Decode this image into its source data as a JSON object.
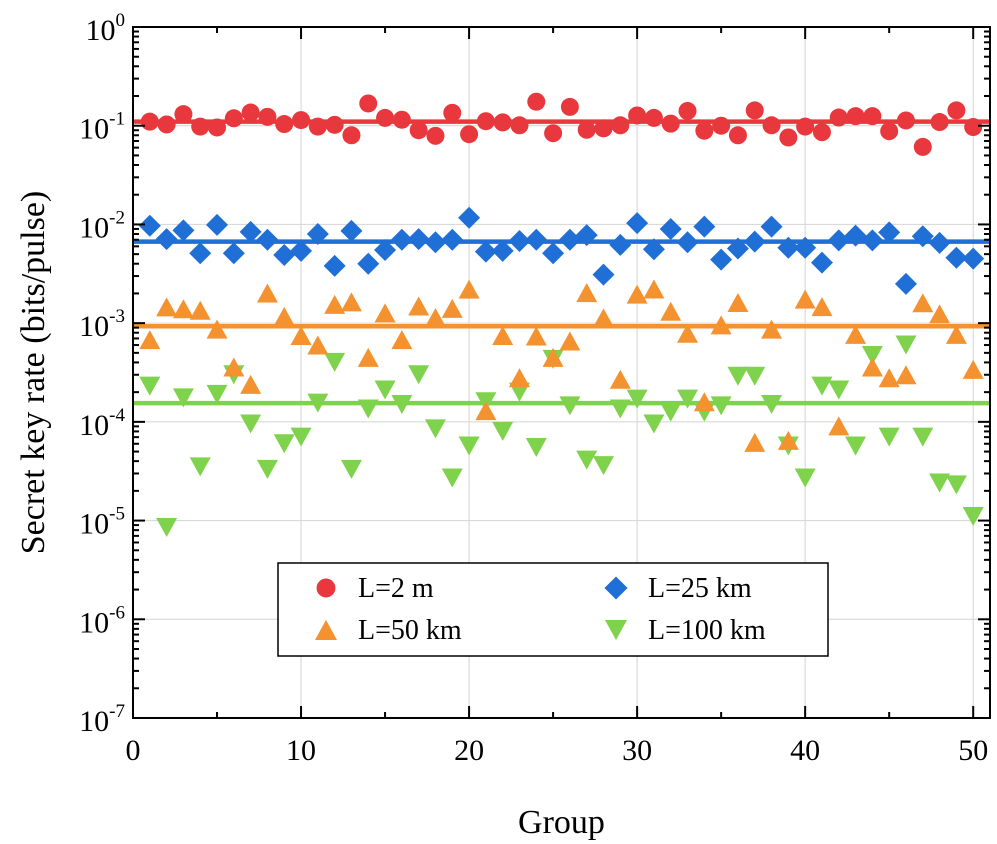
{
  "chart_data": {
    "type": "scatter",
    "title": "",
    "xlabel": "Group",
    "ylabel": "Secret key rate (bits/pulse)",
    "xlim": [
      0,
      51
    ],
    "ylim": [
      1e-07,
      1
    ],
    "yscale": "log",
    "grid": true,
    "legend_position": "bottom-center",
    "x_ticks": [
      "0",
      "10",
      "20",
      "30",
      "40",
      "50"
    ],
    "y_ticks": [
      {
        "base": "10",
        "exp": "0"
      },
      {
        "base": "10",
        "exp": "-1"
      },
      {
        "base": "10",
        "exp": "-2"
      },
      {
        "base": "10",
        "exp": "-3"
      },
      {
        "base": "10",
        "exp": "-4"
      },
      {
        "base": "10",
        "exp": "-5"
      },
      {
        "base": "10",
        "exp": "-6"
      },
      {
        "base": "10",
        "exp": "-7"
      }
    ],
    "x": [
      1,
      2,
      3,
      4,
      5,
      6,
      7,
      8,
      9,
      10,
      11,
      12,
      13,
      14,
      15,
      16,
      17,
      18,
      19,
      20,
      21,
      22,
      23,
      24,
      25,
      26,
      27,
      28,
      29,
      30,
      31,
      32,
      33,
      34,
      35,
      36,
      37,
      38,
      39,
      40,
      41,
      42,
      43,
      44,
      45,
      46,
      47,
      48,
      49,
      50
    ],
    "series": [
      {
        "name": "L=2 m",
        "marker": "circle",
        "color": "#e8383d",
        "mean": 0.11,
        "values": [
          0.11,
          0.103,
          0.131,
          0.098,
          0.096,
          0.119,
          0.136,
          0.123,
          0.104,
          0.114,
          0.098,
          0.102,
          0.08,
          0.168,
          0.12,
          0.115,
          0.09,
          0.079,
          0.135,
          0.082,
          0.111,
          0.108,
          0.101,
          0.175,
          0.084,
          0.155,
          0.091,
          0.094,
          0.101,
          0.127,
          0.12,
          0.105,
          0.141,
          0.089,
          0.1,
          0.08,
          0.143,
          0.101,
          0.076,
          0.098,
          0.086,
          0.121,
          0.125,
          0.125,
          0.088,
          0.113,
          0.061,
          0.109,
          0.143,
          0.097
        ]
      },
      {
        "name": "L=25 km",
        "marker": "diamond",
        "color": "#1f6fd6",
        "mean": 0.0067,
        "values": [
          0.0097,
          0.0071,
          0.0087,
          0.0051,
          0.0099,
          0.0051,
          0.0084,
          0.007,
          0.0049,
          0.0054,
          0.008,
          0.0038,
          0.0086,
          0.004,
          0.0055,
          0.007,
          0.0071,
          0.0066,
          0.007,
          0.0117,
          0.0053,
          0.0054,
          0.0068,
          0.007,
          0.0051,
          0.007,
          0.0078,
          0.0031,
          0.0062,
          0.0103,
          0.0056,
          0.009,
          0.0066,
          0.0095,
          0.0044,
          0.0057,
          0.0067,
          0.0095,
          0.0058,
          0.0058,
          0.0041,
          0.0069,
          0.0077,
          0.0069,
          0.0083,
          0.0025,
          0.0076,
          0.0065,
          0.0046,
          0.0045
        ]
      },
      {
        "name": "L=50 km",
        "marker": "triangle-up",
        "color": "#f59230",
        "mean": 0.00093,
        "values": [
          0.00068,
          0.00146,
          0.0014,
          0.00135,
          0.00087,
          0.00036,
          0.00024,
          0.00202,
          0.00117,
          0.00075,
          0.0006,
          0.00155,
          0.00164,
          0.00045,
          0.00127,
          0.00068,
          0.00149,
          0.00114,
          0.00141,
          0.00221,
          0.00013,
          0.00075,
          0.00028,
          0.00074,
          0.00045,
          0.00066,
          0.00204,
          0.00113,
          0.00027,
          0.00197,
          0.00222,
          0.00132,
          0.00079,
          0.00016,
          0.00096,
          0.00162,
          6.2e-05,
          0.00087,
          6.5e-05,
          0.00175,
          0.00147,
          9.1e-05,
          0.00077,
          0.00036,
          0.00028,
          0.0003,
          0.00161,
          0.00124,
          0.00077,
          0.00034
        ]
      },
      {
        "name": "L=100 km",
        "marker": "triangle-down",
        "color": "#7fd24b",
        "mean": 0.000155,
        "values": [
          0.00023,
          8.5e-06,
          0.000175,
          3.5e-05,
          0.00019,
          0.0003,
          9.5e-05,
          3.3e-05,
          6e-05,
          7e-05,
          0.000155,
          0.0004,
          3.3e-05,
          0.000135,
          0.00021,
          0.00015,
          0.0003,
          8.5e-05,
          2.7e-05,
          5.7e-05,
          0.00016,
          8e-05,
          0.0002,
          5.5e-05,
          0.00043,
          0.000145,
          4.1e-05,
          3.6e-05,
          0.000135,
          0.00017,
          9.5e-05,
          0.000125,
          0.00017,
          0.000125,
          0.000145,
          0.00029,
          0.00029,
          0.00015,
          5.7e-05,
          2.7e-05,
          0.00023,
          0.00021,
          5.7e-05,
          0.00047,
          7e-05,
          0.0006,
          7e-05,
          2.4e-05,
          2.3e-05,
          1.1e-05
        ]
      }
    ]
  }
}
